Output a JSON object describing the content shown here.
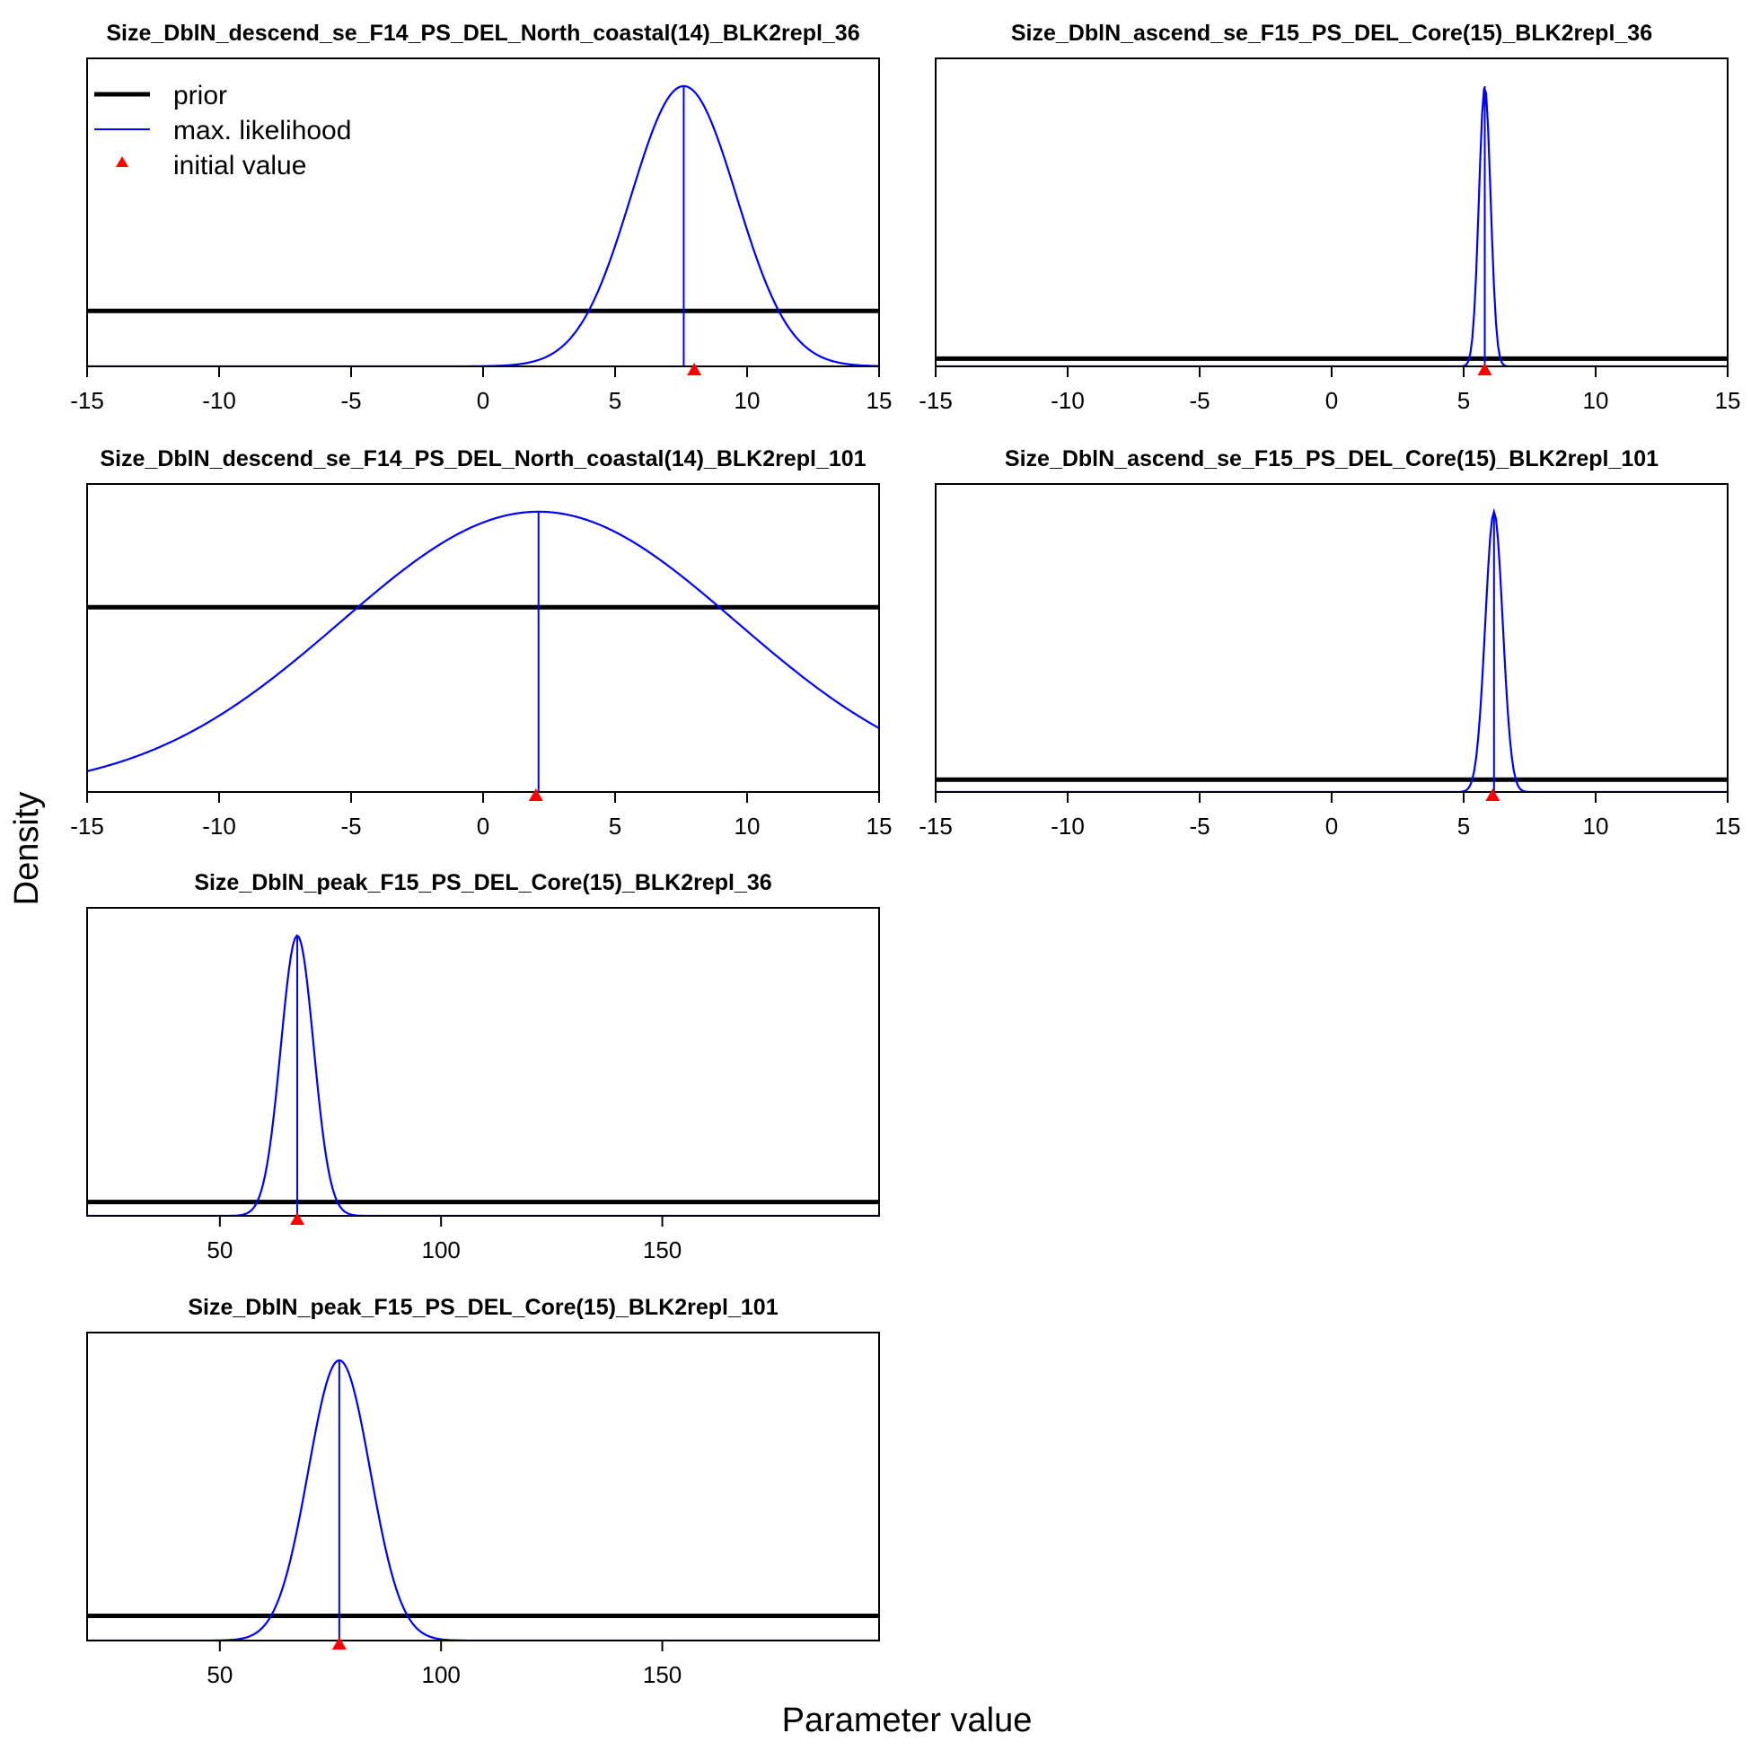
{
  "figure": {
    "xlabel": "Parameter value",
    "ylabel": "Density"
  },
  "legend": {
    "placement": "top-left of first panel",
    "items": [
      {
        "label": "prior",
        "kind": "thick-line",
        "color": "#000000"
      },
      {
        "label": "max. likelihood",
        "kind": "thin-line",
        "color": "#0000ff"
      },
      {
        "label": "initial value",
        "kind": "triangle",
        "color": "#ff0000"
      }
    ]
  },
  "colors": {
    "prior": "#000000",
    "likelihood": "#0000ff",
    "initial": "#ff0000"
  },
  "chart_data": [
    {
      "type": "line",
      "title": "Size_DblN_descend_se_F14_PS_DEL_North_coastal(14)_BLK2repl_36",
      "xlim": [
        -15,
        15
      ],
      "xticks": [
        -15,
        -10,
        -5,
        0,
        5,
        10,
        15
      ],
      "prior_level_fraction": 0.18,
      "likelihood": {
        "mean": 7.6,
        "sd": 2.0
      },
      "mle": 7.6,
      "initial_value": 8.0
    },
    {
      "type": "line",
      "title": "Size_DblN_ascend_se_F15_PS_DEL_Core(15)_BLK2repl_36",
      "xlim": [
        -15,
        15
      ],
      "xticks": [
        -15,
        -10,
        -5,
        0,
        5,
        10,
        15
      ],
      "prior_level_fraction": 0.025,
      "likelihood": {
        "mean": 5.8,
        "sd": 0.22
      },
      "mle": 5.8,
      "initial_value": 5.8
    },
    {
      "type": "line",
      "title": "Size_DblN_descend_se_F14_PS_DEL_North_coastal(14)_BLK2repl_101",
      "xlim": [
        -15,
        15
      ],
      "xticks": [
        -15,
        -10,
        -5,
        0,
        5,
        10,
        15
      ],
      "prior_level_fraction": 0.6,
      "likelihood": {
        "mean": 2.1,
        "sd": 7.5
      },
      "mle": 2.1,
      "initial_value": 2.0
    },
    {
      "type": "line",
      "title": "Size_DblN_ascend_se_F15_PS_DEL_Core(15)_BLK2repl_101",
      "xlim": [
        -15,
        15
      ],
      "xticks": [
        -15,
        -10,
        -5,
        0,
        5,
        10,
        15
      ],
      "prior_level_fraction": 0.04,
      "likelihood": {
        "mean": 6.15,
        "sd": 0.33
      },
      "mle": 6.15,
      "initial_value": 6.1
    },
    {
      "type": "line",
      "title": "Size_DblN_peak_F15_PS_DEL_Core(15)_BLK2repl_36",
      "xlim": [
        20,
        199
      ],
      "xticks": [
        50,
        100,
        150
      ],
      "prior_level_fraction": 0.045,
      "likelihood": {
        "mean": 67.5,
        "sd": 3.7
      },
      "mle": 67.5,
      "initial_value": 67.5
    },
    {
      "type": "line",
      "title": "Size_DblN_peak_F15_PS_DEL_Core(15)_BLK2repl_101",
      "xlim": [
        20,
        199
      ],
      "xticks": [
        50,
        100,
        150
      ],
      "prior_level_fraction": 0.08,
      "likelihood": {
        "mean": 77.0,
        "sd": 7.0
      },
      "mle": 77.0,
      "initial_value": 77.0
    }
  ]
}
